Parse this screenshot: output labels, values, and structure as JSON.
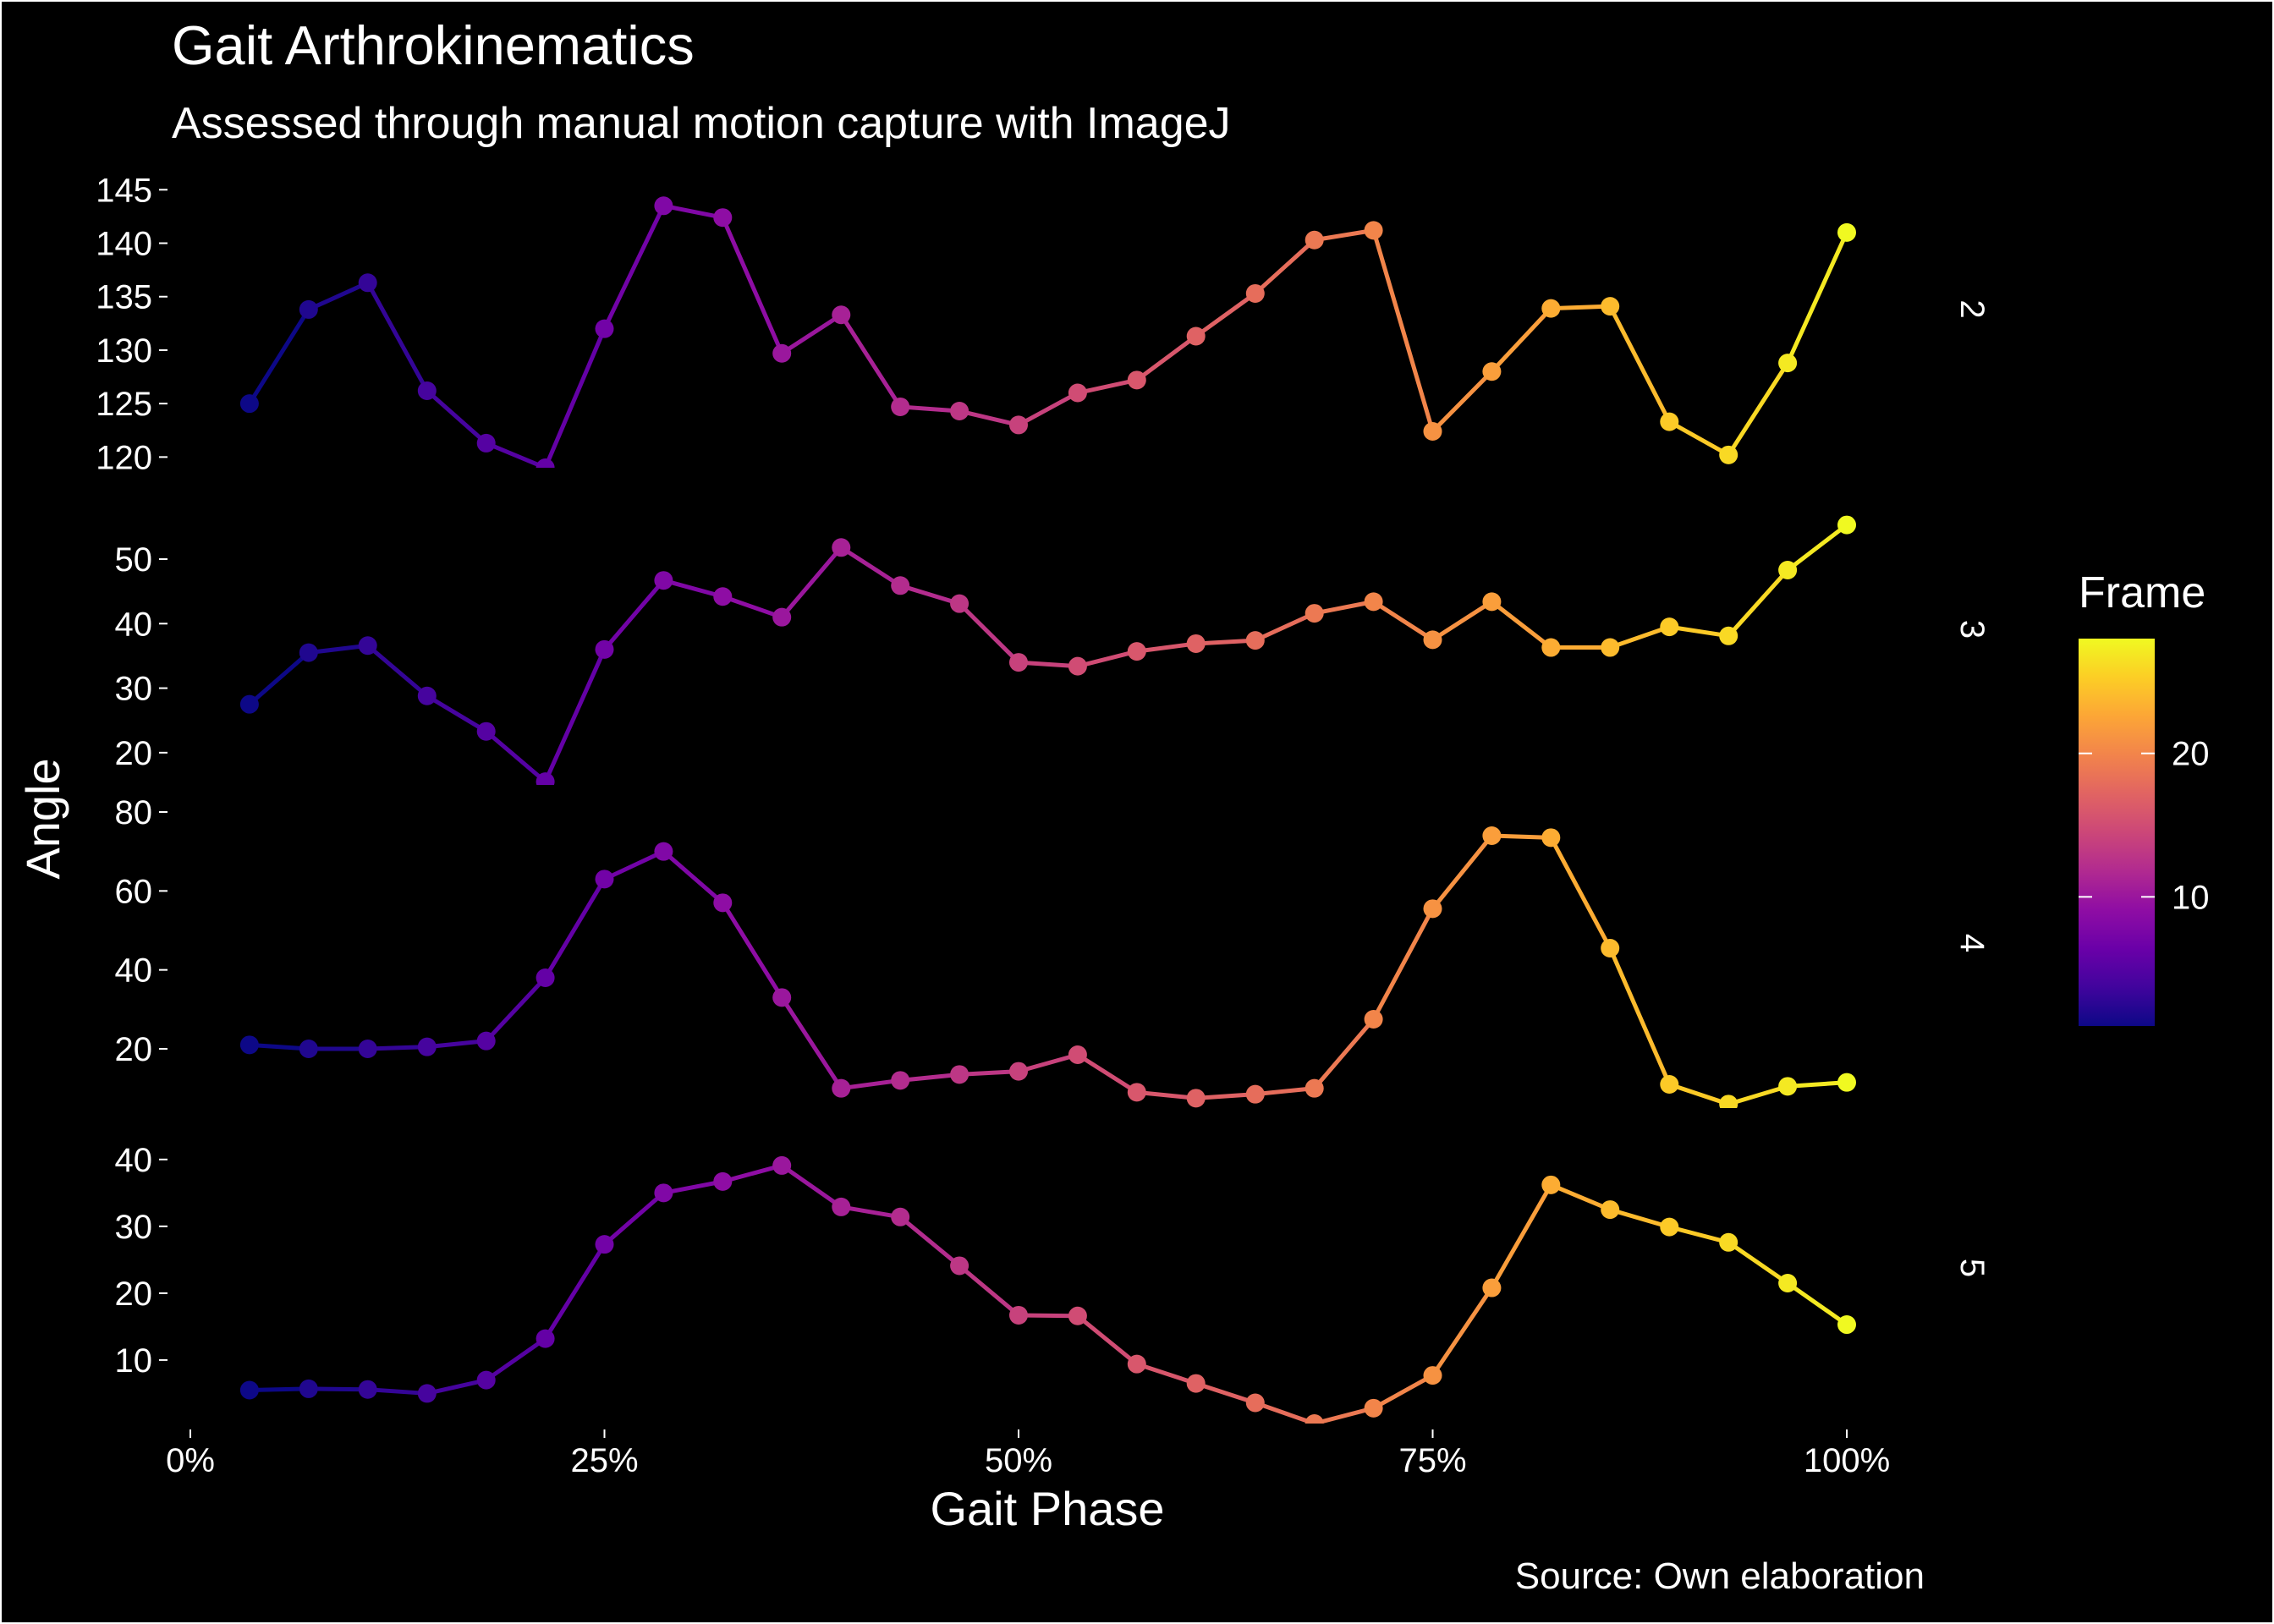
{
  "chart_data": {
    "type": "line",
    "title": "Gait Arthrokinematics",
    "subtitle": "Assessed through manual motion capture with ImageJ",
    "xlabel": "Gait Phase",
    "ylabel": "Angle",
    "caption": "Source: Own elaboration",
    "x_ticks": [
      "0%",
      "25%",
      "50%",
      "75%",
      "100%"
    ],
    "xlim": [
      0,
      1
    ],
    "x": [
      0.0357,
      0.0714,
      0.1071,
      0.1429,
      0.1786,
      0.2143,
      0.25,
      0.2857,
      0.3214,
      0.3571,
      0.3929,
      0.4286,
      0.4643,
      0.5,
      0.5357,
      0.5714,
      0.6071,
      0.6429,
      0.6786,
      0.7143,
      0.75,
      0.7857,
      0.8214,
      0.8571,
      0.8929,
      0.9286,
      0.9643,
      1.0
    ],
    "frames": [
      1,
      2,
      3,
      4,
      5,
      6,
      7,
      8,
      9,
      10,
      11,
      12,
      13,
      14,
      15,
      16,
      17,
      18,
      19,
      20,
      21,
      22,
      23,
      24,
      25,
      26,
      27,
      28
    ],
    "facets": [
      {
        "label": "2",
        "ylim": [
          119,
          145.5
        ],
        "y_ticks": [
          120,
          125,
          130,
          135,
          140,
          145
        ],
        "values": [
          125,
          133.8,
          136.3,
          126.2,
          121.3,
          119,
          132,
          143.5,
          142.4,
          129.7,
          133.3,
          124.7,
          124.3,
          123,
          126,
          127.2,
          131.3,
          135.3,
          140.3,
          141.2,
          122.4,
          128,
          133.9,
          134.1,
          123.3,
          120.2,
          128.8,
          141
        ]
      },
      {
        "label": "3",
        "ylim": [
          15,
          58
        ],
        "y_ticks": [
          20,
          30,
          40,
          50
        ],
        "values": [
          27.5,
          35.5,
          36.6,
          28.8,
          23.3,
          15.5,
          36,
          46.7,
          44.2,
          41,
          51.8,
          45.9,
          43.1,
          34,
          33.4,
          35.7,
          36.9,
          37.4,
          41.6,
          43.4,
          37.5,
          43.4,
          36.3,
          36.3,
          39.5,
          38.1,
          48.3,
          55.3
        ]
      },
      {
        "label": "4",
        "ylim": [
          5,
          80
        ],
        "y_ticks": [
          20,
          40,
          60,
          80
        ],
        "values": [
          21,
          20,
          20,
          20.5,
          22,
          38,
          63,
          70,
          57,
          33,
          10,
          12,
          13.5,
          14.3,
          18.5,
          9,
          7.5,
          8.5,
          10,
          27.5,
          55.5,
          74,
          73.5,
          45.5,
          11,
          6,
          10.5,
          11.5
        ]
      },
      {
        "label": "5",
        "ylim": [
          0.5,
          42
        ],
        "y_ticks": [
          10,
          20,
          30,
          40
        ],
        "values": [
          5.5,
          5.7,
          5.6,
          5,
          7,
          13.2,
          27.3,
          35,
          36.7,
          39.1,
          32.9,
          31.4,
          24.1,
          16.7,
          16.6,
          9.4,
          6.5,
          3.6,
          0.5,
          2.8,
          7.7,
          20.8,
          36.2,
          32.5,
          29.9,
          27.6,
          21.5,
          15.3
        ]
      }
    ],
    "legend": {
      "title": "Frame",
      "ticks": [
        10,
        20
      ],
      "range": [
        1,
        28
      ],
      "placement": "right",
      "colormap": "plasma"
    },
    "grid": false,
    "background": "#000000",
    "text_color": "#ffffff"
  }
}
